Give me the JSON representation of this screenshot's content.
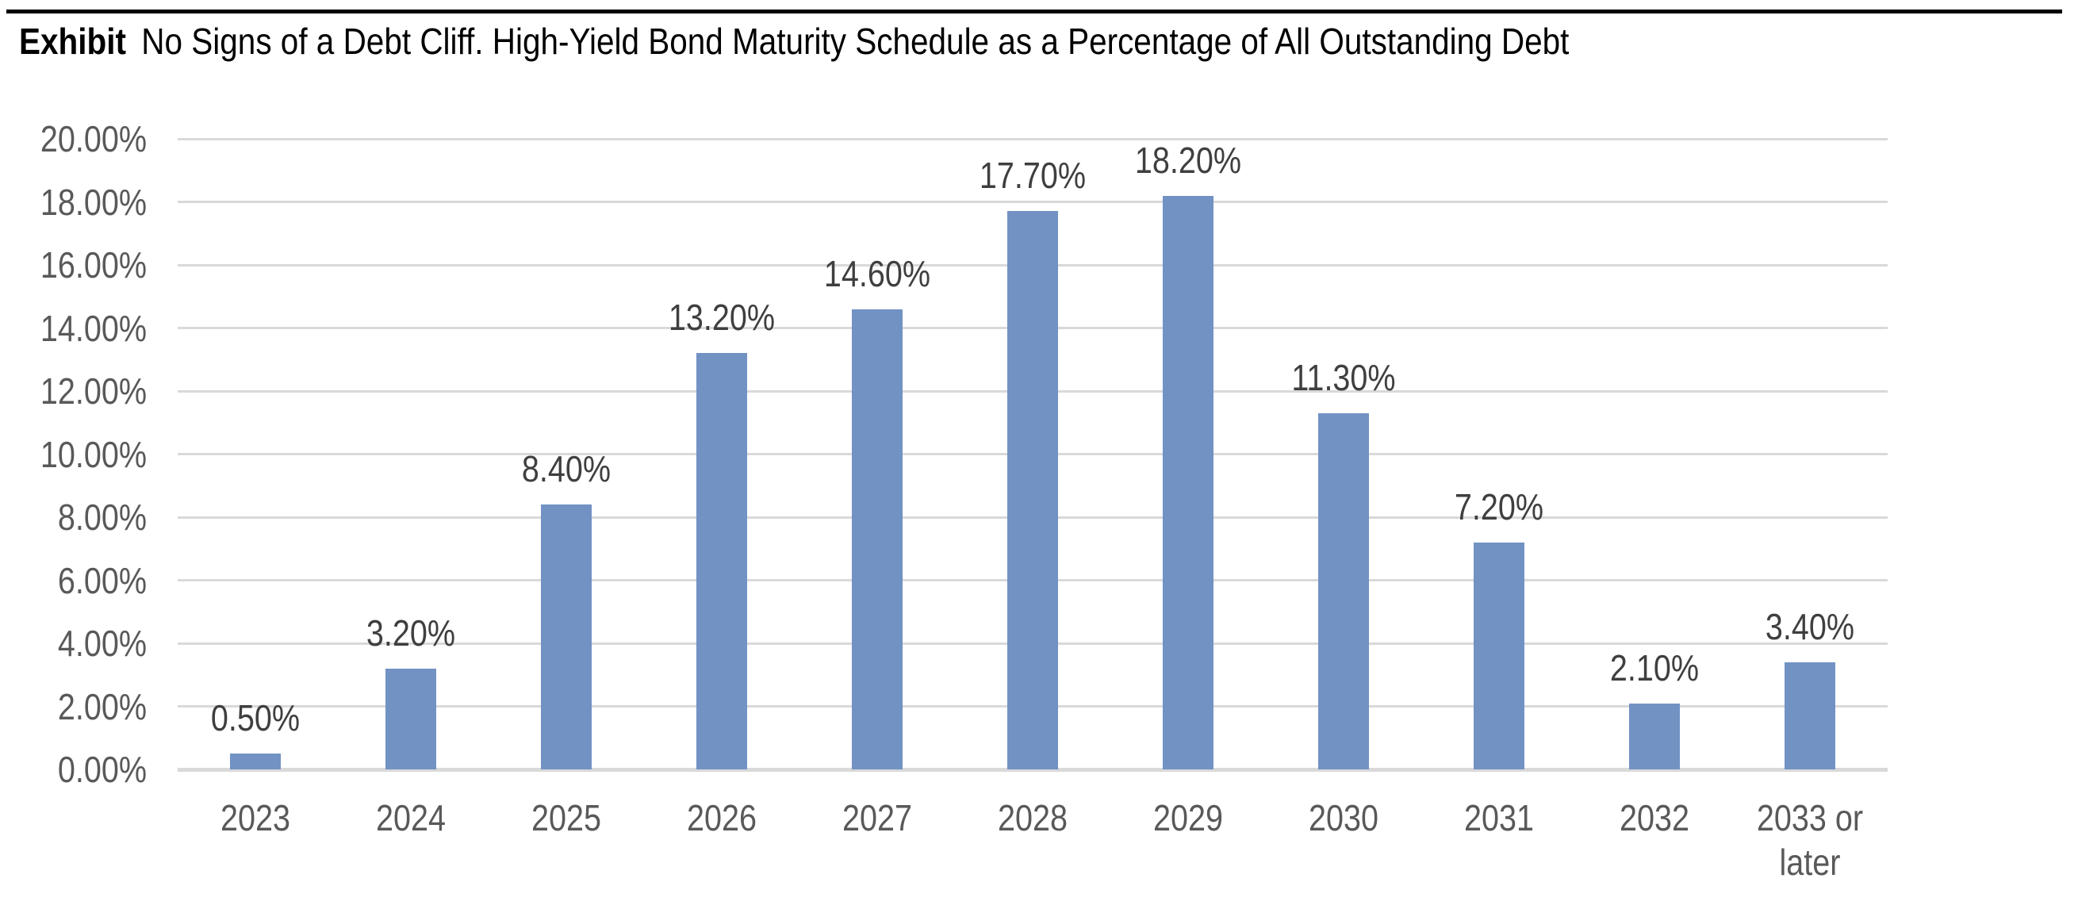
{
  "exhibit": {
    "label": "Exhibit",
    "title": "No Signs of a Debt Cliff. High-Yield Bond Maturity Schedule as a Percentage of All Outstanding Debt"
  },
  "colors": {
    "bar": "#7292C4",
    "gridline": "#D9D9D9",
    "axis_label": "#595959",
    "data_label": "#3F3F3F",
    "title": "#000000",
    "top_rule": "#000000",
    "background": "#FFFFFF"
  },
  "chart_data": {
    "type": "bar",
    "title": "Exhibit  No Signs of a Debt Cliff. High-Yield Bond Maturity Schedule as a Percentage of All Outstanding Debt",
    "categories": [
      "2023",
      "2024",
      "2025",
      "2026",
      "2027",
      "2028",
      "2029",
      "2030",
      "2031",
      "2032",
      "2033 or later"
    ],
    "values": [
      0.5,
      3.2,
      8.4,
      13.2,
      14.6,
      17.7,
      18.2,
      11.3,
      7.2,
      2.1,
      3.4
    ],
    "data_labels": [
      "0.50%",
      "3.20%",
      "8.40%",
      "13.20%",
      "14.60%",
      "17.70%",
      "18.20%",
      "11.30%",
      "7.20%",
      "2.10%",
      "3.40%"
    ],
    "xlabel": "",
    "ylabel": "",
    "ylim": [
      0,
      20
    ],
    "ytick_step": 2,
    "ytick_labels": [
      "0.00%",
      "2.00%",
      "4.00%",
      "6.00%",
      "8.00%",
      "10.00%",
      "12.00%",
      "14.00%",
      "16.00%",
      "18.00%",
      "20.00%"
    ],
    "grid": true,
    "legend": false,
    "data_label_position": "above-bar",
    "bar_color": "#7292C4"
  }
}
